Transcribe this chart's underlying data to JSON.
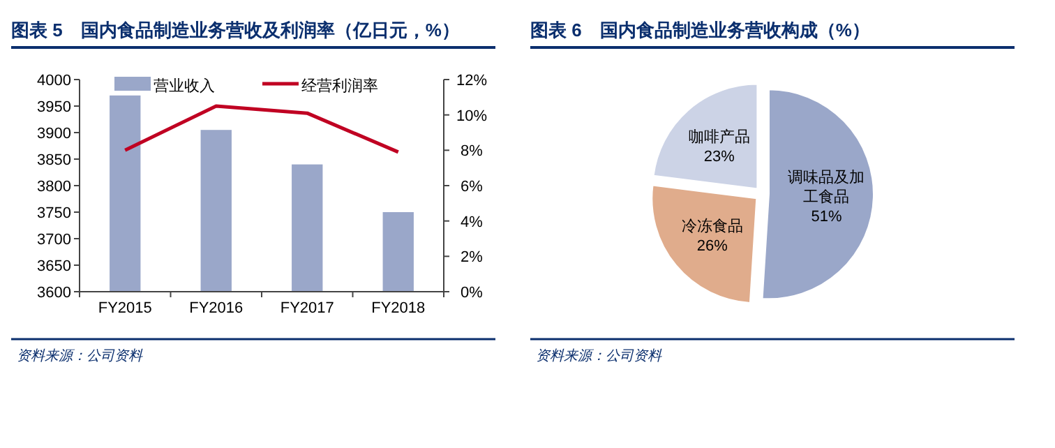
{
  "chart_data": [
    {
      "type": "bar",
      "title": "图表 5　国内食品制造业务营收及利润率（亿日元，%）",
      "categories": [
        "FY2015",
        "FY2016",
        "FY2017",
        "FY2018"
      ],
      "series": [
        {
          "name": "营业收入",
          "type": "bar",
          "color": "#9aa7c9",
          "values": [
            3970,
            3905,
            3840,
            3750
          ]
        },
        {
          "name": "经营利润率",
          "type": "line",
          "axis": "y2",
          "color": "#c00022",
          "values": [
            8.0,
            10.5,
            10.1,
            7.9
          ]
        }
      ],
      "ylim": [
        3600,
        4000
      ],
      "yticks": [
        3600,
        3650,
        3700,
        3750,
        3800,
        3850,
        3900,
        3950,
        4000
      ],
      "y2lim": [
        0,
        12
      ],
      "y2ticks": [
        {
          "value": 0,
          "label": "0%"
        },
        {
          "value": 2,
          "label": "2%"
        },
        {
          "value": 4,
          "label": "4%"
        },
        {
          "value": 6,
          "label": "6%"
        },
        {
          "value": 8,
          "label": "8%"
        },
        {
          "value": 10,
          "label": "10%"
        },
        {
          "value": 12,
          "label": "12%"
        }
      ],
      "legend": "top",
      "grid": false,
      "annotations": [
        "资料来源：公司资料"
      ]
    },
    {
      "type": "pie",
      "title": "图表 6　国内食品制造业务营收构成（%）",
      "categories": [
        "调味品及加工食品",
        "冷冻食品",
        "咖啡产品"
      ],
      "values": [
        51,
        26,
        23
      ],
      "colors": [
        "#9aa7c9",
        "#e0ac8c",
        "#ccd3e6"
      ],
      "value_labels": [
        "51%",
        "26%",
        "23%"
      ],
      "legend": false,
      "annotations": [
        "资料来源：公司资料"
      ]
    }
  ]
}
